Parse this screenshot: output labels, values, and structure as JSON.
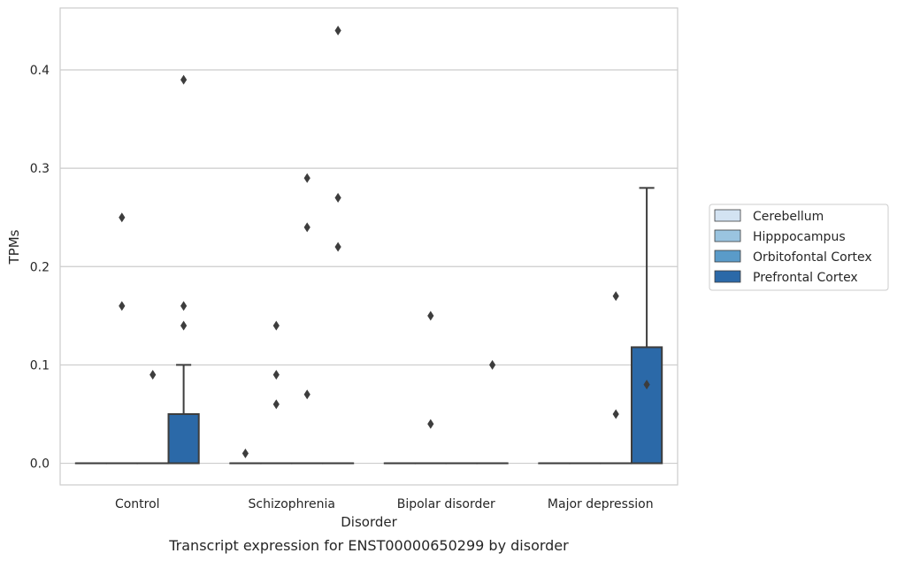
{
  "chart_data": {
    "type": "box",
    "title": "",
    "caption": "Transcript expression for ENST00000650299 by disorder",
    "xlabel": "Disorder",
    "ylabel": "TPMs",
    "categories": [
      "Control",
      "Schizophrenia",
      "Bipolar disorder",
      "Major depression"
    ],
    "ylim": [
      -0.022,
      0.463
    ],
    "yticks": [
      0.0,
      0.1,
      0.2,
      0.3,
      0.4
    ],
    "ytick_labels": [
      "0.0",
      "0.1",
      "0.2",
      "0.3",
      "0.4"
    ],
    "grid": true,
    "legend_position": "right",
    "series": [
      {
        "name": "Cerebellum",
        "color": "#d3e3f2",
        "boxes": [
          {
            "q1": 0,
            "median": 0,
            "q3": 0,
            "whislo": 0,
            "whishi": 0,
            "fliers": []
          },
          {
            "q1": 0,
            "median": 0,
            "q3": 0,
            "whislo": 0,
            "whishi": 0,
            "fliers": [
              0.01
            ]
          },
          {
            "q1": 0,
            "median": 0,
            "q3": 0,
            "whislo": 0,
            "whishi": 0,
            "fliers": []
          },
          {
            "q1": 0,
            "median": 0,
            "q3": 0,
            "whislo": 0,
            "whishi": 0,
            "fliers": []
          }
        ]
      },
      {
        "name": "Hipppocampus",
        "color": "#9ac4e0",
        "boxes": [
          {
            "q1": 0,
            "median": 0,
            "q3": 0,
            "whislo": 0,
            "whishi": 0,
            "fliers": [
              0.25,
              0.16
            ]
          },
          {
            "q1": 0,
            "median": 0,
            "q3": 0,
            "whislo": 0,
            "whishi": 0,
            "fliers": [
              0.14,
              0.09,
              0.06
            ]
          },
          {
            "q1": 0,
            "median": 0,
            "q3": 0,
            "whislo": 0,
            "whishi": 0,
            "fliers": [
              0.15,
              0.04
            ]
          },
          {
            "q1": 0,
            "median": 0,
            "q3": 0,
            "whislo": 0,
            "whishi": 0,
            "fliers": []
          }
        ]
      },
      {
        "name": "Orbitofontal Cortex",
        "color": "#5a9bc9",
        "boxes": [
          {
            "q1": 0,
            "median": 0,
            "q3": 0,
            "whislo": 0,
            "whishi": 0,
            "fliers": [
              0.09
            ]
          },
          {
            "q1": 0,
            "median": 0,
            "q3": 0,
            "whislo": 0,
            "whishi": 0,
            "fliers": [
              0.29,
              0.24,
              0.07
            ]
          },
          {
            "q1": 0,
            "median": 0,
            "q3": 0,
            "whislo": 0,
            "whishi": 0,
            "fliers": []
          },
          {
            "q1": 0,
            "median": 0,
            "q3": 0,
            "whislo": 0,
            "whishi": 0,
            "fliers": [
              0.17,
              0.05
            ]
          }
        ]
      },
      {
        "name": "Prefrontal Cortex",
        "color": "#2b69a8",
        "boxes": [
          {
            "q1": 0,
            "median": 0,
            "q3": 0.05,
            "whislo": 0,
            "whishi": 0.1,
            "fliers": [
              0.39,
              0.16,
              0.14
            ]
          },
          {
            "q1": 0,
            "median": 0,
            "q3": 0,
            "whislo": 0,
            "whishi": 0,
            "fliers": [
              0.44,
              0.27,
              0.22
            ]
          },
          {
            "q1": 0,
            "median": 0,
            "q3": 0,
            "whislo": 0,
            "whishi": 0,
            "fliers": [
              0.1
            ]
          },
          {
            "q1": 0,
            "median": 0,
            "q3": 0.118,
            "whislo": 0,
            "whishi": 0.28,
            "fliers": [
              0.08
            ]
          }
        ]
      }
    ]
  }
}
